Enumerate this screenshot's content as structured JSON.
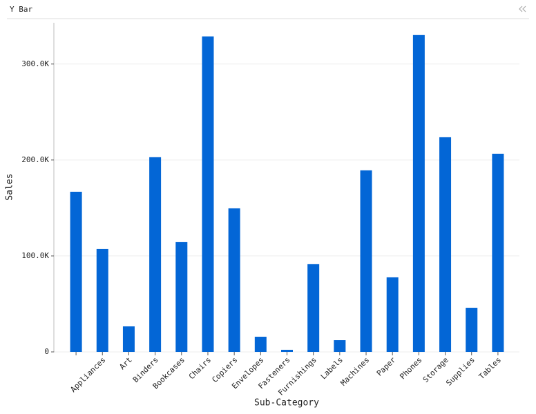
{
  "chart_data": {
    "type": "bar",
    "title": "Y Bar",
    "x_label": "Sub-Category",
    "y_label": "Sales",
    "categories": [
      null,
      "Appliances",
      "Art",
      "Binders",
      "Bookcases",
      "Chairs",
      "Copiers",
      "Envelopes",
      "Fasteners",
      "Furnishings",
      "Labels",
      "Machines",
      "Paper",
      "Phones",
      "Storage",
      "Supplies",
      "Tables"
    ],
    "values": [
      166900,
      107200,
      26600,
      202900,
      114400,
      328800,
      149600,
      15800,
      2200,
      91400,
      12200,
      189200,
      77700,
      330200,
      223700,
      46000,
      206500
    ],
    "color": "#0366d6",
    "ylim": [
      0,
      343000
    ],
    "yticks": [
      0,
      {
        "value": 100000,
        "label": "100.0K"
      },
      {
        "value": 200000,
        "label": "200.0K"
      },
      {
        "value": 300000,
        "label": "300.0K"
      }
    ],
    "grid": true
  }
}
